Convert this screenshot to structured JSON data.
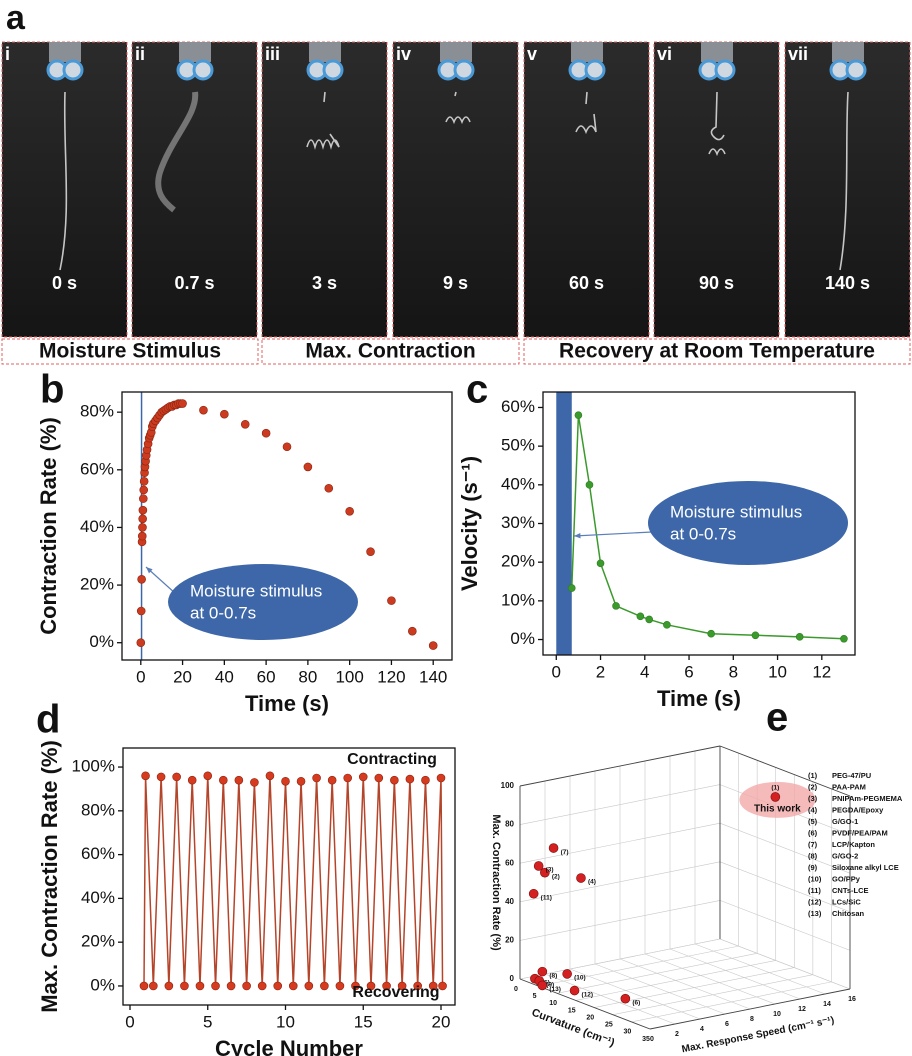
{
  "figure_a": {
    "panel_label": "a",
    "frames": [
      {
        "index": "i",
        "time": "0 s"
      },
      {
        "index": "ii",
        "time": "0.7 s"
      },
      {
        "index": "iii",
        "time": "3 s"
      },
      {
        "index": "iv",
        "time": "9 s"
      },
      {
        "index": "v",
        "time": "60 s"
      },
      {
        "index": "vi",
        "time": "90 s"
      },
      {
        "index": "vii",
        "time": "140 s"
      }
    ],
    "stages": [
      "Moisture Stimulus",
      "Max. Contraction",
      "Recovery at Room Temperature"
    ]
  },
  "chart_data": [
    {
      "panel_label": "b",
      "type": "scatter",
      "x_label": "Time (s)",
      "y_label": "Contraction Rate (%)",
      "x": [
        0,
        0.2,
        0.4,
        0.6,
        0.7,
        0.8,
        0.9,
        1,
        1.2,
        1.4,
        1.6,
        1.8,
        2,
        2.3,
        2.6,
        3,
        3.5,
        4,
        4.5,
        5,
        5.5,
        6,
        7,
        8,
        9,
        10,
        11,
        12,
        13,
        14,
        15,
        16,
        17,
        18,
        19,
        20,
        30,
        40,
        50,
        60,
        70,
        80,
        90,
        100,
        110,
        120,
        130,
        140
      ],
      "values": [
        0,
        11,
        22,
        35,
        37,
        40,
        43,
        46,
        50,
        53,
        56,
        59,
        61,
        63,
        65,
        67,
        69,
        71,
        72,
        73,
        75,
        76,
        77,
        78,
        79,
        80,
        80.5,
        81,
        81.5,
        82,
        82,
        82.5,
        82.5,
        83,
        83,
        83,
        80.7,
        79.3,
        75.8,
        72.7,
        68,
        61,
        53.6,
        45.6,
        31.6,
        14.6,
        4,
        -1
      ],
      "color": "#cc3b1f",
      "xlim": [
        -9,
        149
      ],
      "ylim": [
        -6,
        87
      ],
      "xticks": [
        0,
        20,
        40,
        60,
        80,
        100,
        120,
        140
      ],
      "yticks": [
        {
          "value": 0,
          "label": "0%"
        },
        {
          "value": 20,
          "label": "20%"
        },
        {
          "value": 40,
          "label": "40%"
        },
        {
          "value": 60,
          "label": "60%"
        },
        {
          "value": 80,
          "label": "80%"
        }
      ],
      "stimulus_span": [
        0,
        0.7
      ],
      "stimulus_color": "#3d67a8",
      "annotation": [
        "Moisture stimulus",
        "at 0-0.7s"
      ]
    },
    {
      "panel_label": "c",
      "type": "line",
      "x_label": "Time (s)",
      "y_label": "Velocity (s⁻¹)",
      "x": [
        0.7,
        1,
        1.5,
        2,
        2.7,
        3.8,
        4.2,
        5,
        7,
        9,
        11,
        13
      ],
      "values": [
        13.3,
        58,
        40,
        19.7,
        8.7,
        6,
        5.2,
        3.8,
        1.5,
        1.1,
        0.7,
        0.2
      ],
      "color": "#3b9a2c",
      "xlim": [
        -0.6,
        13.5
      ],
      "ylim": [
        -4,
        64
      ],
      "xticks": [
        0,
        2,
        4,
        6,
        8,
        10,
        12
      ],
      "yticks": [
        {
          "value": 0,
          "label": "0%"
        },
        {
          "value": 10,
          "label": "10%"
        },
        {
          "value": 20,
          "label": "20%"
        },
        {
          "value": 30,
          "label": "30%"
        },
        {
          "value": 40,
          "label": "40%"
        },
        {
          "value": 50,
          "label": "50%"
        },
        {
          "value": 60,
          "label": "60%"
        }
      ],
      "stimulus_span": [
        0,
        0.7
      ],
      "stimulus_color": "#3d67a8",
      "annotation": [
        "Moisture stimulus",
        "at 0-0.7s"
      ]
    },
    {
      "panel_label": "d",
      "type": "line",
      "x_label": "Cycle Number",
      "y_label": "Max. Contraction Rate (%)",
      "x": [
        0.9,
        1,
        1.5,
        2,
        2.5,
        3,
        3.5,
        4,
        4.5,
        5,
        5.5,
        6,
        6.5,
        7,
        7.5,
        8,
        8.5,
        9,
        9.5,
        10,
        10.5,
        11,
        11.5,
        12,
        12.5,
        13,
        13.5,
        14,
        14.5,
        15,
        15.5,
        16,
        16.5,
        17,
        17.5,
        18,
        18.5,
        19,
        19.5,
        20,
        20.1
      ],
      "values": [
        0,
        96,
        0,
        95.5,
        0,
        95.5,
        0,
        94,
        0,
        96,
        0,
        94,
        0,
        94,
        0,
        93,
        0,
        96,
        0,
        93.5,
        0,
        93.5,
        0,
        95,
        0,
        94,
        0,
        95,
        0,
        95.5,
        0,
        95,
        0,
        94,
        0,
        94.5,
        0,
        94,
        0,
        95,
        0
      ],
      "color": "#b5452a",
      "xlim": [
        -0.45,
        20.9
      ],
      "ylim": [
        -8.7,
        108.7
      ],
      "xticks": [
        0,
        5,
        10,
        15,
        20
      ],
      "yticks": [
        {
          "value": 0,
          "label": "0%"
        },
        {
          "value": 20,
          "label": "20%"
        },
        {
          "value": 40,
          "label": "40%"
        },
        {
          "value": 60,
          "label": "60%"
        },
        {
          "value": 80,
          "label": "80%"
        },
        {
          "value": 100,
          "label": "100%"
        }
      ],
      "annotations": [
        "Contracting",
        "Recovering"
      ]
    },
    {
      "panel_label": "e",
      "type": "scatter3d",
      "x_label": "Curvature (cm⁻¹)",
      "y_label": "Max. Response Speed (cm⁻¹ s⁻¹)",
      "z_label": "Max. Contraction Rate (%)",
      "xlim": [
        0,
        35
      ],
      "ylim": [
        0,
        16
      ],
      "zlim": [
        0,
        100
      ],
      "xticks": [
        0,
        5,
        10,
        15,
        20,
        25,
        30,
        35
      ],
      "yticks": [
        0,
        2,
        4,
        6,
        8,
        10,
        12,
        14,
        16
      ],
      "zticks": [
        0,
        20,
        40,
        60,
        80,
        100
      ],
      "color": "#d42020",
      "highlight": "This work",
      "points": [
        {
          "label": "(1)",
          "name": "PEG-47/PU",
          "x": 25,
          "y": 13,
          "z": 96
        },
        {
          "label": "(2)",
          "name": "PAA-PAM",
          "x": 4,
          "y": 0.8,
          "z": 57
        },
        {
          "label": "(3)",
          "name": "PNIPAm-PEGMEMA",
          "x": 3,
          "y": 0.6,
          "z": 60
        },
        {
          "label": "(4)",
          "name": "PEGDA/Epoxy",
          "x": 8,
          "y": 2.5,
          "z": 55
        },
        {
          "label": "(5)",
          "name": "G/GO-1",
          "x": 3,
          "y": 0.3,
          "z": 2
        },
        {
          "label": "(6)",
          "name": "PVDF/PEA/PAM",
          "x": 25,
          "y": 1,
          "z": 7
        },
        {
          "label": "(7)",
          "name": "LCP/Kapton",
          "x": 5,
          "y": 1.2,
          "z": 70
        },
        {
          "label": "(8)",
          "name": "G/GO-2",
          "x": 4,
          "y": 0.6,
          "z": 6
        },
        {
          "label": "(9)",
          "name": "Siloxane alkyl LCE",
          "x": 3.5,
          "y": 0.5,
          "z": 1
        },
        {
          "label": "(10)",
          "name": "GO/PPy",
          "x": 10,
          "y": 0.8,
          "z": 9
        },
        {
          "label": "(11)",
          "name": "CNTs-LCE",
          "x": 2,
          "y": 0.5,
          "z": 45
        },
        {
          "label": "(12)",
          "name": "LCs/SiC",
          "x": 13,
          "y": 0.5,
          "z": 3
        },
        {
          "label": "(13)",
          "name": "Chitosan",
          "x": 5,
          "y": 0.3,
          "z": 0
        }
      ]
    }
  ]
}
